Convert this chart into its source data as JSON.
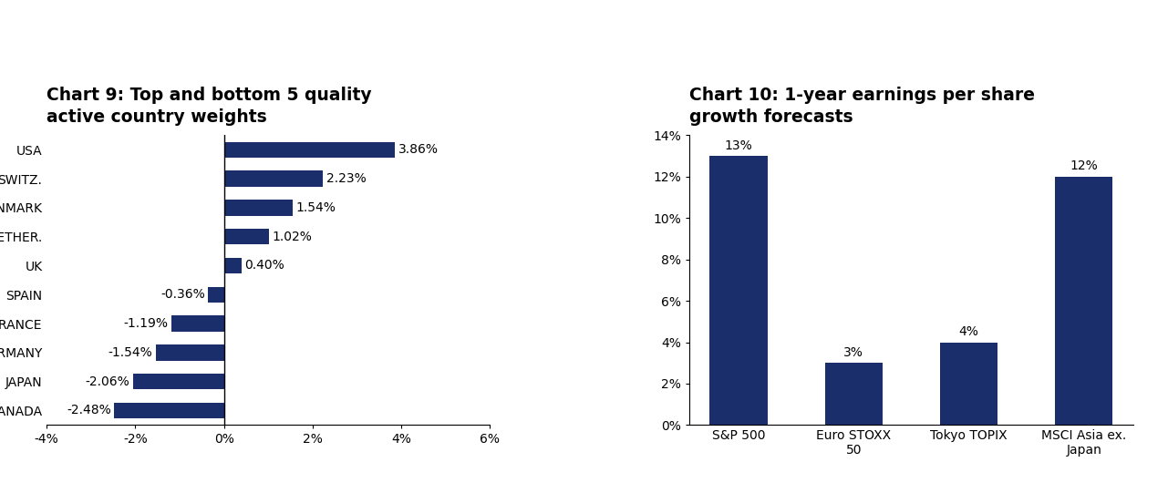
{
  "chart9": {
    "title_line1": "Chart 9: Top and bottom 5 quality",
    "title_line2": "active country weights",
    "categories": [
      "USA",
      "SWITZ.",
      "DENMARK",
      "NETHER.",
      "UK",
      "SPAIN",
      "FRANCE",
      "GERMANY",
      "JAPAN",
      "CANADA"
    ],
    "values": [
      3.86,
      2.23,
      1.54,
      1.02,
      0.4,
      -0.36,
      -1.19,
      -1.54,
      -2.06,
      -2.48
    ],
    "labels": [
      "3.86%",
      "2.23%",
      "1.54%",
      "1.02%",
      "0.40%",
      "-0.36%",
      "-1.19%",
      "-1.54%",
      "-2.06%",
      "-2.48%"
    ],
    "bar_color": "#1a2e6c",
    "xlim": [
      -4,
      6
    ],
    "xticks": [
      -4,
      -2,
      0,
      2,
      4,
      6
    ],
    "xticklabels": [
      "-4%",
      "-2%",
      "0%",
      "2%",
      "4%",
      "6%"
    ]
  },
  "chart10": {
    "title_line1": "Chart 10: 1-year earnings per share",
    "title_line2": "growth forecasts",
    "categories": [
      "S&P 500",
      "Euro STOXX\n50",
      "Tokyo TOPIX",
      "MSCI Asia ex.\nJapan"
    ],
    "values": [
      13,
      3,
      4,
      12
    ],
    "labels": [
      "13%",
      "3%",
      "4%",
      "12%"
    ],
    "bar_color": "#1a2e6c",
    "ylim": [
      0,
      14
    ],
    "yticks": [
      0,
      2,
      4,
      6,
      8,
      10,
      12,
      14
    ],
    "yticklabels": [
      "0%",
      "2%",
      "4%",
      "6%",
      "8%",
      "10%",
      "12%",
      "14%"
    ]
  },
  "background_color": "#ffffff",
  "title_fontsize": 13.5,
  "label_fontsize": 10,
  "tick_fontsize": 10
}
